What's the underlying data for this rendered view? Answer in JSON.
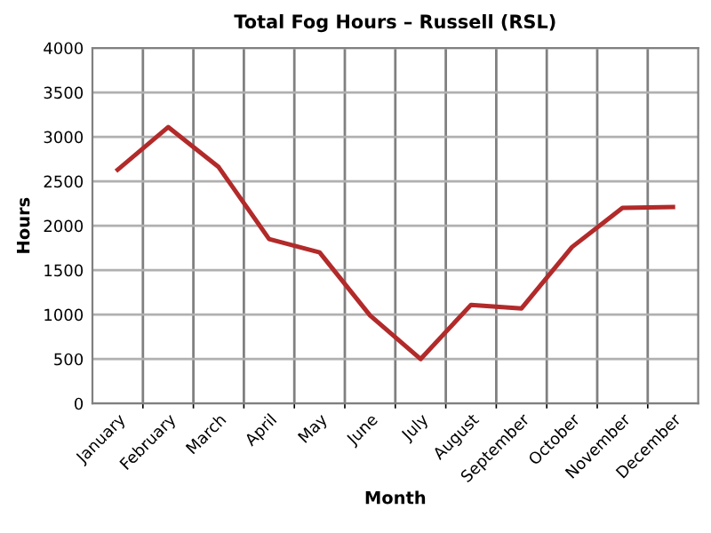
{
  "chart_data": {
    "type": "line",
    "title": "Total Fog Hours – Russell (RSL)",
    "xlabel": "Month",
    "ylabel": "Hours",
    "categories": [
      "January",
      "February",
      "March",
      "April",
      "May",
      "June",
      "July",
      "August",
      "September",
      "October",
      "November",
      "December"
    ],
    "series": [
      {
        "color": "#b22a2a",
        "values": [
          2630,
          3110,
          2660,
          1850,
          1700,
          990,
          500,
          1110,
          1070,
          1760,
          2200,
          2210
        ]
      }
    ],
    "ylim": [
      0,
      4000
    ],
    "yticks": [
      0,
      500,
      1000,
      1500,
      2000,
      2500,
      3000,
      3500,
      4000
    ],
    "grid": true,
    "marker": "none",
    "line_style": "solid"
  }
}
